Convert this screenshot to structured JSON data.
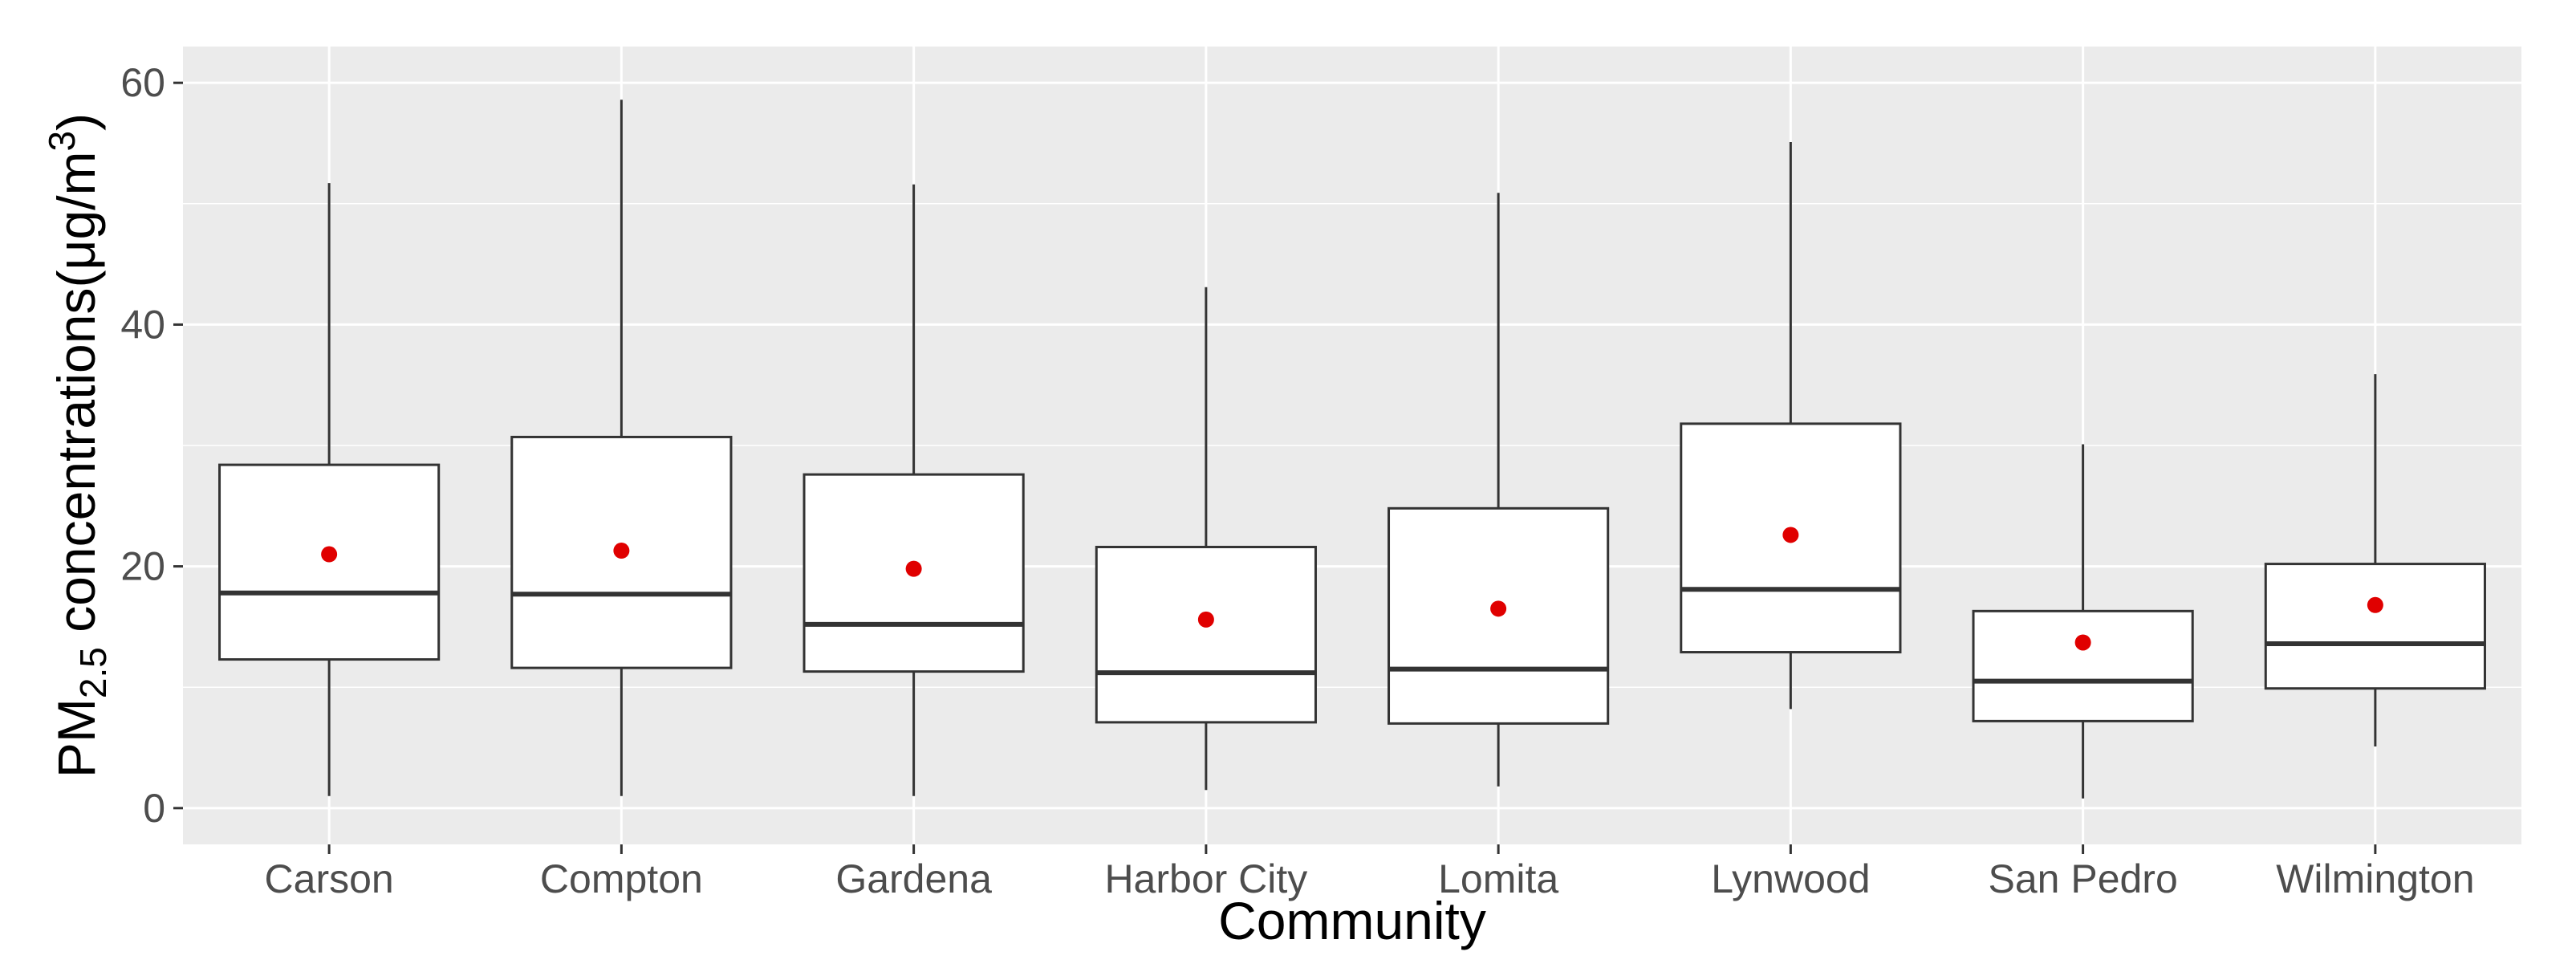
{
  "chart_data": {
    "type": "boxplot",
    "title": "",
    "xlabel": "Community",
    "ylabel": {
      "prefix": "PM",
      "subscript": "2.5",
      "middle": " concentrations(μg/m",
      "superscript": "3",
      "suffix": ")"
    },
    "ylim": [
      -3,
      63
    ],
    "yticks": [
      0,
      20,
      40,
      60
    ],
    "grid": true,
    "legend": "none",
    "categories": [
      "Carson",
      "Compton",
      "Gardena",
      "Harbor City",
      "Lomita",
      "Lynwood",
      "San Pedro",
      "Wilmington"
    ],
    "boxes": [
      {
        "category": "Carson",
        "whisker_low": 1.0,
        "q1": 12.3,
        "median": 17.8,
        "q3": 28.4,
        "whisker_high": 51.7,
        "mean": 21.0
      },
      {
        "category": "Compton",
        "whisker_low": 1.0,
        "q1": 11.6,
        "median": 17.7,
        "q3": 30.7,
        "whisker_high": 58.6,
        "mean": 21.3
      },
      {
        "category": "Gardena",
        "whisker_low": 1.0,
        "q1": 11.3,
        "median": 15.2,
        "q3": 27.6,
        "whisker_high": 51.6,
        "mean": 19.8
      },
      {
        "category": "Harbor City",
        "whisker_low": 1.5,
        "q1": 7.1,
        "median": 11.2,
        "q3": 21.6,
        "whisker_high": 43.1,
        "mean": 15.6
      },
      {
        "category": "Lomita",
        "whisker_low": 1.8,
        "q1": 7.0,
        "median": 11.5,
        "q3": 24.8,
        "whisker_high": 50.9,
        "mean": 16.5
      },
      {
        "category": "Lynwood",
        "whisker_low": 8.2,
        "q1": 12.9,
        "median": 18.1,
        "q3": 31.8,
        "whisker_high": 55.1,
        "mean": 22.6
      },
      {
        "category": "San Pedro",
        "whisker_low": 0.8,
        "q1": 7.2,
        "median": 10.5,
        "q3": 16.3,
        "whisker_high": 30.1,
        "mean": 13.7
      },
      {
        "category": "Wilmington",
        "whisker_low": 5.1,
        "q1": 9.9,
        "median": 13.6,
        "q3": 20.2,
        "whisker_high": 35.9,
        "mean": 16.8
      }
    ],
    "colors": {
      "panel_background": "#ebebeb",
      "grid": "#ffffff",
      "box_fill": "#ffffff",
      "box_outline": "#333333",
      "mean_point": "#e00000",
      "tick_text": "#4d4d4d",
      "title_text": "#000000"
    }
  }
}
